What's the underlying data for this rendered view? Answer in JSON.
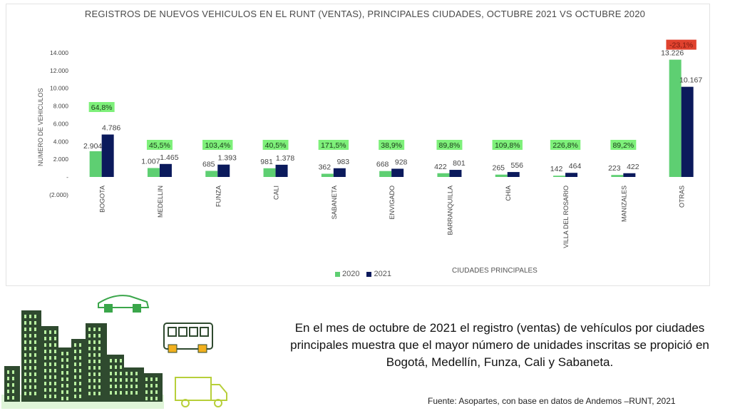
{
  "chart_data": {
    "type": "bar",
    "title": "REGISTROS DE NUEVOS VEHICULOS EN EL RUNT (VENTAS), PRINCIPALES CIUDADES, OCTUBRE 2021 VS OCTUBRE 2020",
    "xlabel": "CIUDADES PRINCIPALES",
    "ylabel": "NUMERO DE VEHICULOS",
    "ylim": [
      -2000,
      14000
    ],
    "yticks": [
      "(2.000)",
      "-",
      "2.000",
      "4.000",
      "6.000",
      "8.000",
      "10.000",
      "12.000",
      "14.000"
    ],
    "categories": [
      "BOGOTA",
      "MEDELLIN",
      "FUNZA",
      "CALI",
      "SABANETA",
      "ENVIGADO",
      "BARRANQUILLA",
      "CHIA",
      "VILLA DEL ROSARIO",
      "MANIZALES",
      "OTRAS"
    ],
    "series": [
      {
        "name": "2020",
        "color": "#5ecf72",
        "values": [
          2904,
          1007,
          685,
          981,
          362,
          668,
          422,
          265,
          142,
          223,
          13226
        ],
        "labels": [
          "2.904",
          "1.007",
          "685",
          "981",
          "362",
          "668",
          "422",
          "265",
          "142",
          "223",
          "13.226"
        ]
      },
      {
        "name": "2021",
        "color": "#0b1a5c",
        "values": [
          4786,
          1465,
          1393,
          1378,
          983,
          928,
          801,
          556,
          464,
          422,
          10167
        ],
        "labels": [
          "4.786",
          "1.465",
          "1.393",
          "1.378",
          "983",
          "928",
          "801",
          "556",
          "464",
          "422",
          "10.167"
        ]
      }
    ],
    "growth": [
      "64,8%",
      "45,5%",
      "103,4%",
      "40,5%",
      "171,5%",
      "38,9%",
      "89,8%",
      "109,8%",
      "226,8%",
      "89,2%",
      "-23,1%"
    ],
    "growth_colors": {
      "positive": "#7ef07a",
      "negative": "#e0422e"
    },
    "grid": false,
    "legend": "bottom-center"
  },
  "caption": "En el mes de octubre  de 2021 el registro (ventas) de vehículos por ciudades principales muestra que el mayor número de unidades inscritas se propició en Bogotá, Medellín, Funza, Cali y Sabaneta.",
  "source": "Fuente: Asopartes, con base en datos de Andemos –RUNT, 2021",
  "illustration_colors": {
    "building": "#2f4a2f",
    "window": "#b8f0a0",
    "accent": "#3aa64a",
    "panel": "#dff5d8",
    "wheel": "#f2b01e"
  },
  "icons": [
    "city-buildings-icon",
    "car-icon",
    "bus-icon",
    "truck-icon"
  ]
}
